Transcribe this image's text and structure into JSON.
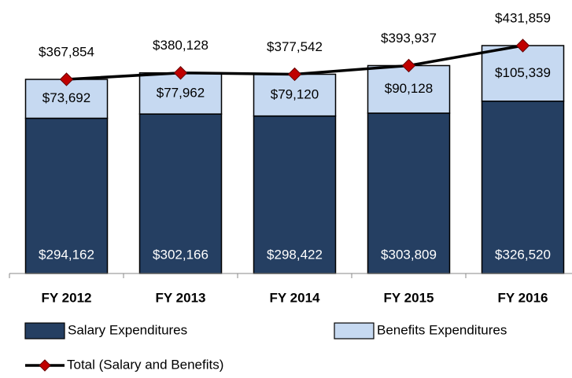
{
  "chart_data": {
    "type": "bar",
    "categories": [
      "FY 2012",
      "FY 2013",
      "FY 2014",
      "FY 2015",
      "FY 2016"
    ],
    "stacked": true,
    "series": [
      {
        "name": "Salary Expenditures",
        "color": "#253f62",
        "values": [
          294162,
          302166,
          298422,
          303809,
          326520
        ],
        "value_labels": [
          "$294,162",
          "$302,166",
          "$298,422",
          "$303,809",
          "$326,520"
        ]
      },
      {
        "name": "Benefits Expenditures",
        "color": "#c6d9f1",
        "values": [
          73692,
          77962,
          79120,
          90128,
          105339
        ],
        "value_labels": [
          "$73,692",
          "$77,962",
          "$79,120",
          "$90,128",
          "$105,339"
        ]
      },
      {
        "name": "Total (Salary and Benefits)",
        "type": "line",
        "color": "#000000",
        "marker_color": "#c00000",
        "values": [
          367854,
          380128,
          377542,
          393937,
          431859
        ],
        "value_labels": [
          "$367,854",
          "$380,128",
          "$377,542",
          "$393,937",
          "$431,859"
        ]
      }
    ]
  }
}
